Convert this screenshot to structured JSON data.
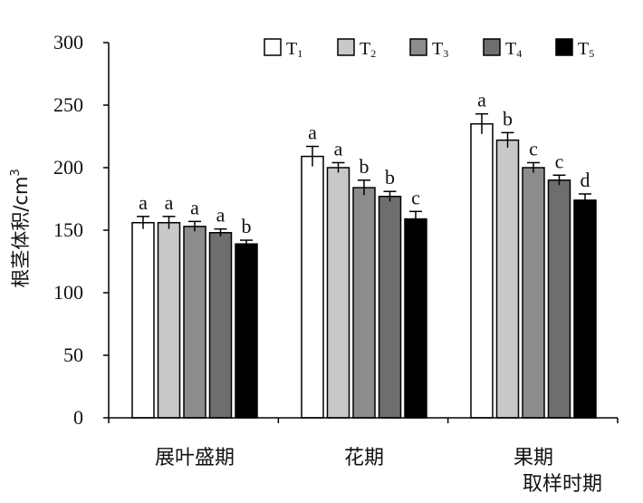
{
  "chart_data": {
    "type": "bar",
    "ylabel": "根茎体积/cm",
    "ylabel_superscript": "3",
    "xlabel": "取样时期",
    "ylim": [
      0,
      300
    ],
    "yticks": [
      0,
      50,
      100,
      150,
      200,
      250,
      300
    ],
    "grid": false,
    "legend_position": "top-right",
    "categories": [
      "展叶盛期",
      "花期",
      "果期"
    ],
    "series": [
      {
        "name": "T",
        "sub": "1",
        "color": "#ffffff",
        "values": [
          156,
          209,
          235
        ],
        "errors": [
          5,
          8,
          8
        ],
        "labels": [
          "a",
          "a",
          "a"
        ]
      },
      {
        "name": "T",
        "sub": "2",
        "color": "#c8c8c8",
        "values": [
          156,
          200,
          222
        ],
        "errors": [
          5,
          4,
          6
        ],
        "labels": [
          "a",
          "a",
          "b"
        ]
      },
      {
        "name": "T",
        "sub": "3",
        "color": "#8c8c8c",
        "values": [
          153,
          184,
          200
        ],
        "errors": [
          4,
          6,
          4
        ],
        "labels": [
          "a",
          "b",
          "c"
        ]
      },
      {
        "name": "T",
        "sub": "4",
        "color": "#6e6e6e",
        "values": [
          148,
          177,
          190
        ],
        "errors": [
          3,
          4,
          4
        ],
        "labels": [
          "a",
          "b",
          "c"
        ]
      },
      {
        "name": "T",
        "sub": "5",
        "color": "#000000",
        "values": [
          139,
          159,
          174
        ],
        "errors": [
          3,
          6,
          5
        ],
        "labels": [
          "b",
          "c",
          "d"
        ]
      }
    ]
  }
}
